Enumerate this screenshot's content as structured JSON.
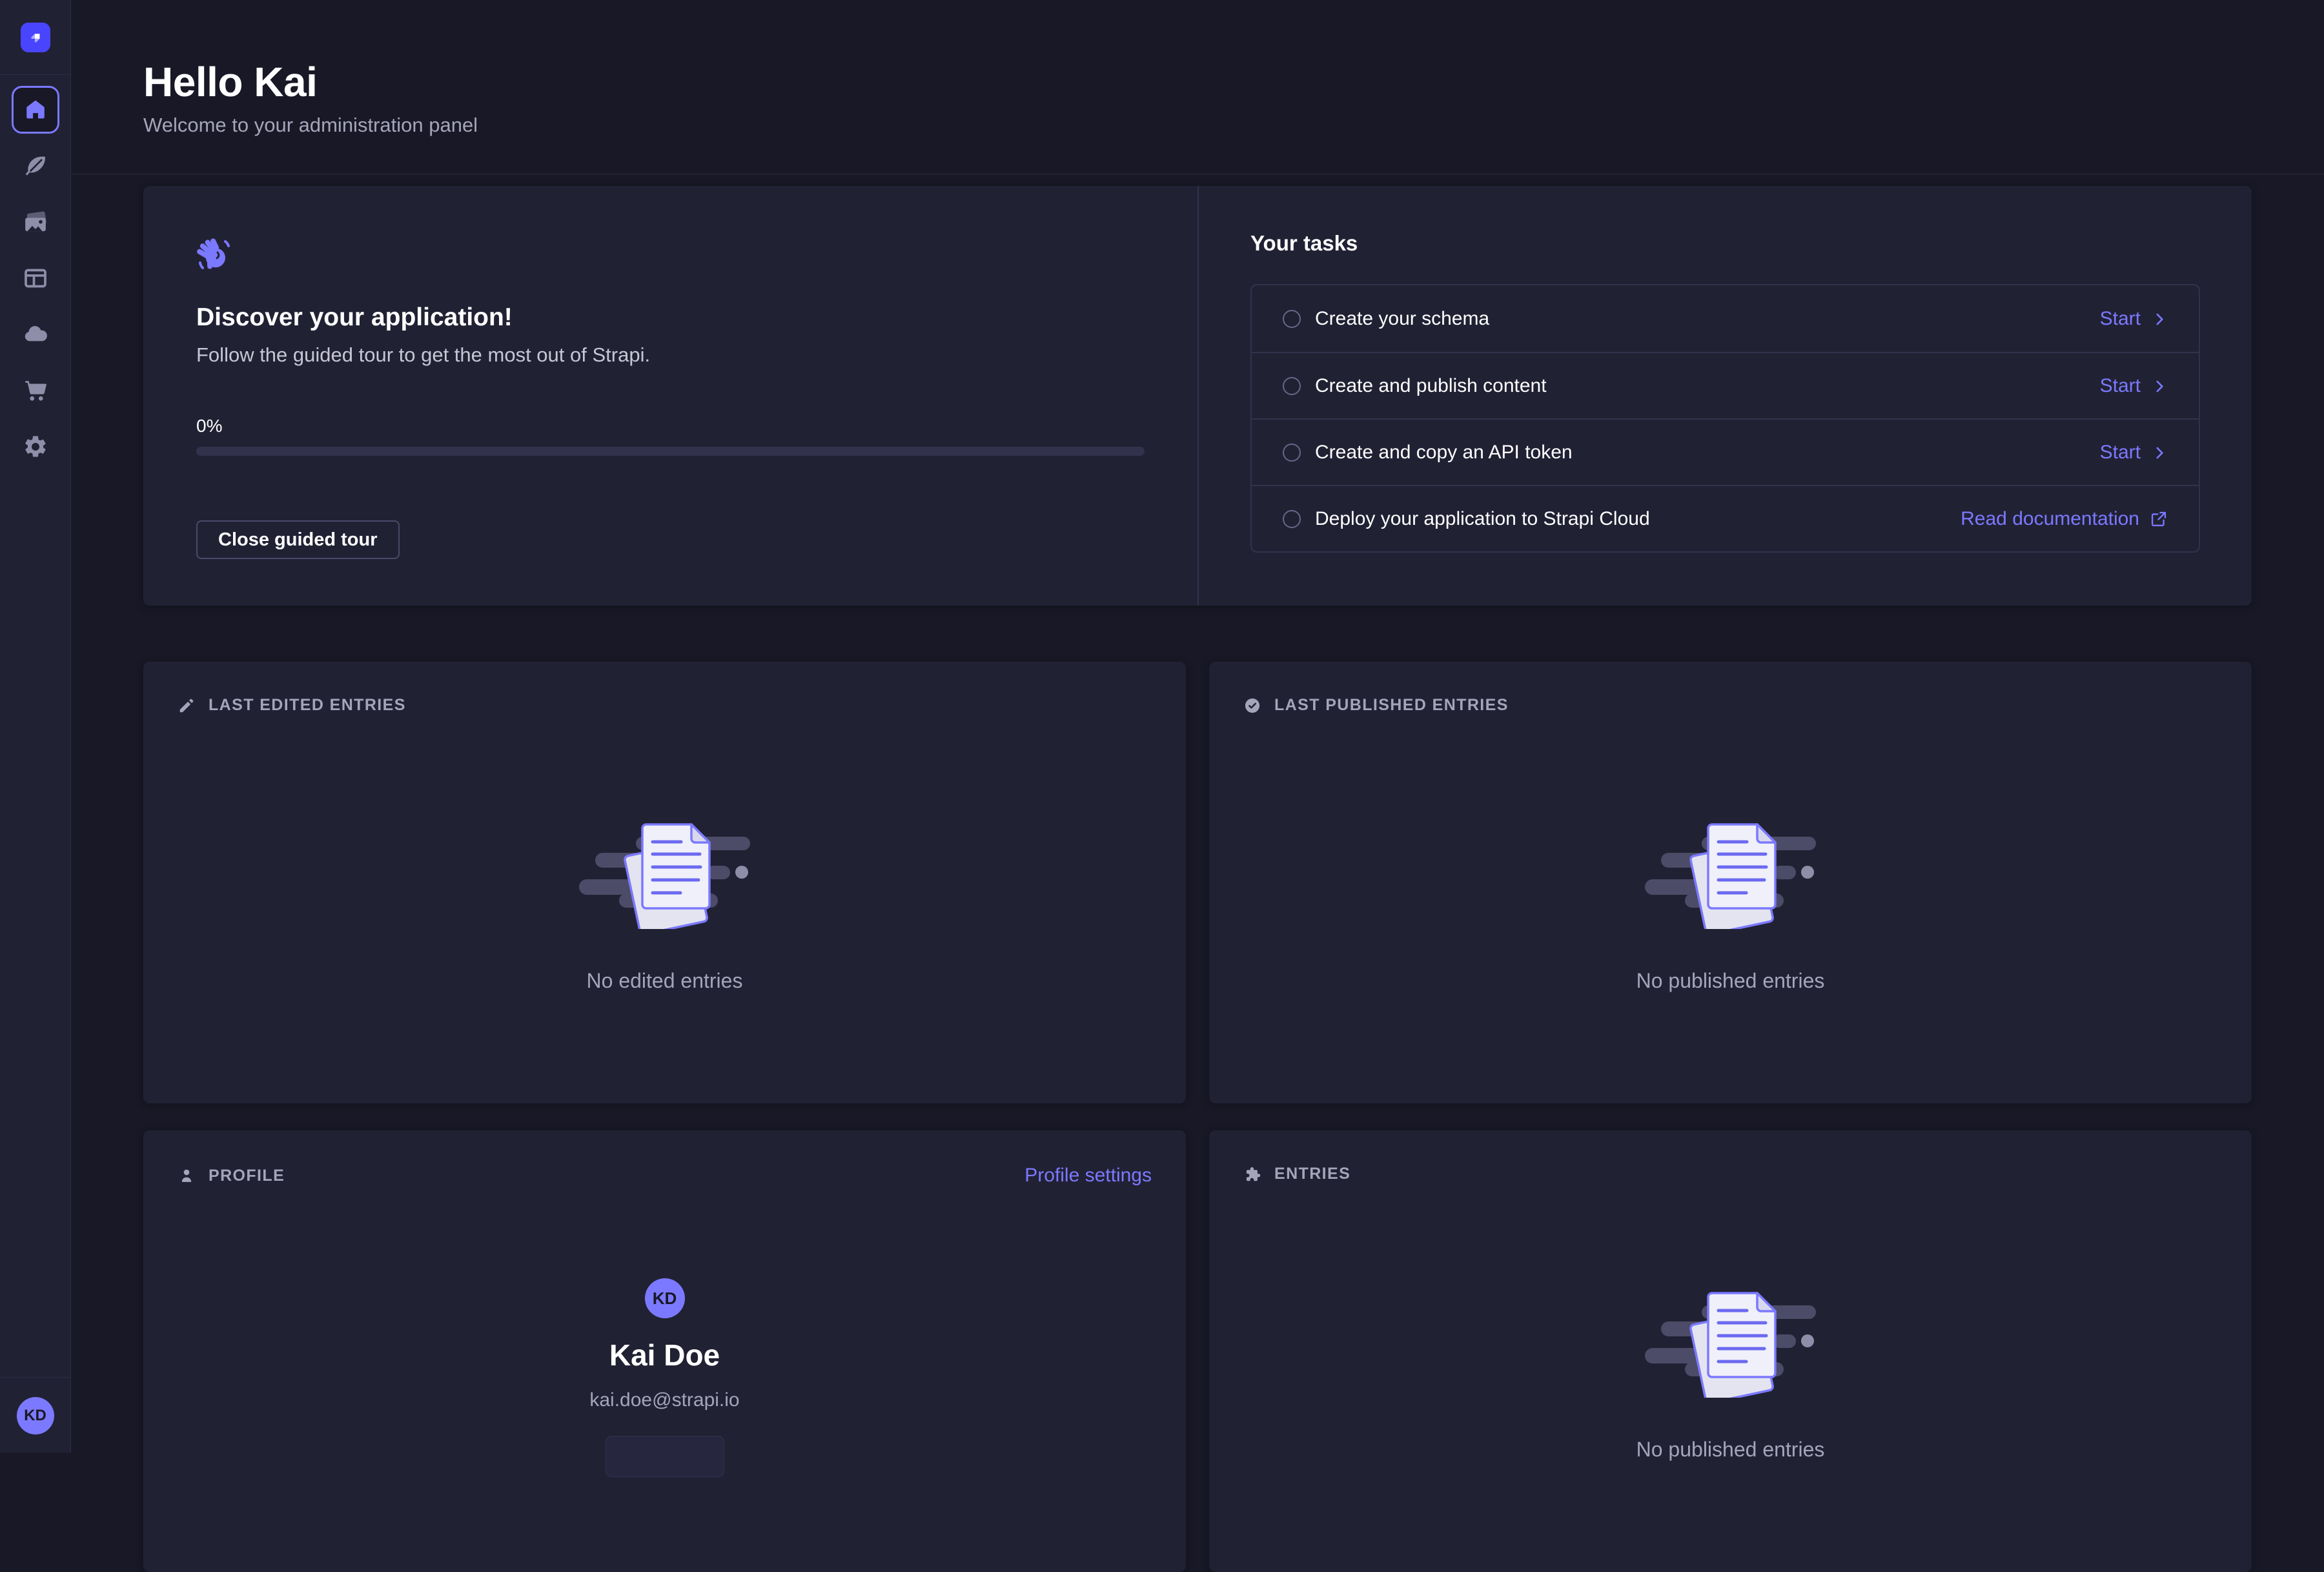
{
  "sidebar": {
    "logo_icon": "strapi-logo-icon",
    "items": [
      {
        "name": "home",
        "icon": "home-icon",
        "active": true
      },
      {
        "name": "content-manager",
        "icon": "feather-icon",
        "active": false
      },
      {
        "name": "media-library",
        "icon": "images-icon",
        "active": false
      },
      {
        "name": "content-type-builder",
        "icon": "layout-icon",
        "active": false
      },
      {
        "name": "deploy",
        "icon": "cloud-icon",
        "active": false
      },
      {
        "name": "marketplace",
        "icon": "cart-icon",
        "active": false
      },
      {
        "name": "settings",
        "icon": "gear-icon",
        "active": false
      }
    ],
    "user_initials": "KD"
  },
  "header": {
    "title": "Hello Kai",
    "subtitle": "Welcome to your administration panel"
  },
  "guided_tour": {
    "wave_icon": "waving-hand-icon",
    "title": "Discover your application!",
    "description": "Follow the guided tour to get the most out of Strapi.",
    "progress_label": "0%",
    "progress_percent": 0,
    "close_button": "Close guided tour"
  },
  "tasks": {
    "title": "Your tasks",
    "items": [
      {
        "label": "Create your schema",
        "action": "Start",
        "action_icon": "chevron-right-icon"
      },
      {
        "label": "Create and publish content",
        "action": "Start",
        "action_icon": "chevron-right-icon"
      },
      {
        "label": "Create and copy an API token",
        "action": "Start",
        "action_icon": "chevron-right-icon"
      },
      {
        "label": "Deploy your application to Strapi Cloud",
        "action": "Read documentation",
        "action_icon": "external-link-icon"
      }
    ]
  },
  "widgets": {
    "last_edited": {
      "icon": "pencil-icon",
      "title": "LAST EDITED ENTRIES",
      "empty": "No edited entries"
    },
    "last_published": {
      "icon": "check-circle-icon",
      "title": "LAST PUBLISHED ENTRIES",
      "empty": "No published entries"
    },
    "profile": {
      "icon": "person-icon",
      "title": "PROFILE",
      "settings_link": "Profile settings",
      "initials": "KD",
      "name": "Kai Doe",
      "email": "kai.doe@strapi.io"
    },
    "entries": {
      "icon": "puzzle-icon",
      "title": "ENTRIES",
      "empty": "No published entries"
    }
  },
  "colors": {
    "primary": "#4945ff",
    "accent": "#7b79ff",
    "background": "#181826",
    "surface": "#212134",
    "border": "#32324d",
    "text_muted": "#a5a5ba"
  }
}
